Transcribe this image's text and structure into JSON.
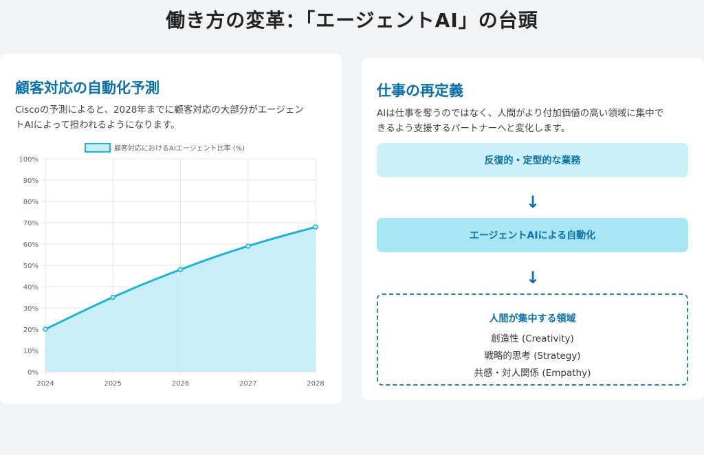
{
  "page": {
    "title": "働き方の変革：「エージェントAI」の台頭"
  },
  "left_card": {
    "title": "顧客対応の自動化予測",
    "desc_line1": "Ciscoの予測によると、2028年までに顧客対応の大部分がエージェン",
    "desc_line2": "トAIによって担われるようになります。"
  },
  "chart_data": {
    "type": "area",
    "x": [
      "2024",
      "2025",
      "2026",
      "2027",
      "2028"
    ],
    "series": [
      {
        "name": "顧客対応におけるAIエージェント比率 (%)",
        "values": [
          20,
          35,
          48,
          59,
          68
        ]
      }
    ],
    "ylim": [
      0,
      100
    ],
    "yticks": [
      "0%",
      "10%",
      "20%",
      "30%",
      "40%",
      "50%",
      "60%",
      "70%",
      "80%",
      "90%",
      "100%"
    ],
    "grid": true,
    "legend_position": "top-center",
    "line_color": "#1db3d4",
    "fill_color": "#c6edf6"
  },
  "right_card": {
    "title": "仕事の再定義",
    "desc_line1": "AIは仕事を奪うのではなく、人間がより付加価値の高い領域に集中で",
    "desc_line2": "きるよう支援するパートナーへと変化します。",
    "box1_label": "反復的・定型的な業務",
    "arrow1": "↓",
    "box2_label": "エージェントAIによる自動化",
    "arrow2": "↓",
    "focus_title": "人間が集中する領域",
    "focus_items": [
      "創造性 (Creativity)",
      "戦略的思考 (Strategy)",
      "共感・対人関係 (Empathy)"
    ]
  },
  "colors": {
    "accent": "#0b6fa8",
    "box_light": "#cdf1f8",
    "box_mid": "#a9e6f3"
  }
}
